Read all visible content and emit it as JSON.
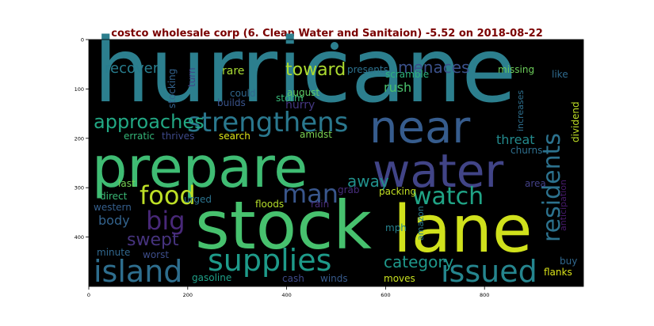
{
  "chart_data": {
    "type": "wordcloud",
    "title": "costco wholesale corp (6. Clean Water and Sanitaion) -5.52 on 2018-08-22",
    "title_color": "#7a0000",
    "background": "#000000",
    "colormap": "viridis",
    "xlim": [
      0,
      1000
    ],
    "ylim": [
      500,
      0
    ],
    "x_ticks": [
      0,
      200,
      400,
      600,
      800
    ],
    "y_ticks": [
      0,
      100,
      200,
      300,
      400
    ],
    "words": [
      {
        "text": "hurricane",
        "weight": 1.0,
        "color": "#2c7f8e"
      },
      {
        "text": "prepare",
        "weight": 0.9,
        "color": "#3fbc73"
      },
      {
        "text": "stock",
        "weight": 0.88,
        "color": "#47c16e"
      },
      {
        "text": "lane",
        "weight": 0.85,
        "color": "#d0e11c"
      },
      {
        "text": "water",
        "weight": 0.75,
        "color": "#414487"
      },
      {
        "text": "near",
        "weight": 0.72,
        "color": "#365c8d"
      },
      {
        "text": "supplies",
        "weight": 0.55,
        "color": "#1e9b8a"
      },
      {
        "text": "strengthens",
        "weight": 0.5,
        "color": "#2a788e"
      },
      {
        "text": "island",
        "weight": 0.5,
        "color": "#2e6e8e"
      },
      {
        "text": "issued",
        "weight": 0.48,
        "color": "#25858e"
      },
      {
        "text": "food",
        "weight": 0.42,
        "color": "#bddf26"
      },
      {
        "text": "big",
        "weight": 0.42,
        "color": "#482878"
      },
      {
        "text": "man",
        "weight": 0.4,
        "color": "#39568c"
      },
      {
        "text": "watch",
        "weight": 0.4,
        "color": "#20a486"
      },
      {
        "text": "residents",
        "weight": 0.38,
        "color": "#2c728e"
      },
      {
        "text": "approaches",
        "weight": 0.3,
        "color": "#22a884"
      },
      {
        "text": "swept",
        "weight": 0.28,
        "color": "#46337e"
      },
      {
        "text": "toward",
        "weight": 0.28,
        "color": "#addc30"
      },
      {
        "text": "category",
        "weight": 0.27,
        "color": "#1f988b"
      },
      {
        "text": "menaces",
        "weight": 0.27,
        "color": "#3b518b"
      },
      {
        "text": "recover",
        "weight": 0.25,
        "color": "#287d8e"
      },
      {
        "text": "away",
        "weight": 0.25,
        "color": "#21918c"
      },
      {
        "text": "threat",
        "weight": 0.22,
        "color": "#238a8d"
      },
      {
        "text": "body",
        "weight": 0.2,
        "color": "#33638d"
      },
      {
        "text": "rush",
        "weight": 0.2,
        "color": "#4ac16d"
      },
      {
        "text": "hurry",
        "weight": 0.18,
        "color": "#453882"
      },
      {
        "text": "rare",
        "weight": 0.16,
        "color": "#a8db34"
      },
      {
        "text": "missing",
        "weight": 0.15,
        "color": "#6ccd5a"
      },
      {
        "text": "like",
        "weight": 0.15,
        "color": "#2f6b8e"
      },
      {
        "text": "search",
        "weight": 0.15,
        "color": "#dde318"
      },
      {
        "text": "packing",
        "weight": 0.15,
        "color": "#c2df23"
      },
      {
        "text": "dividend",
        "weight": 0.14,
        "color": "#c0df25"
      },
      {
        "text": "anticipation",
        "weight": 0.13,
        "color": "#481b6d"
      },
      {
        "text": "presents",
        "weight": 0.14,
        "color": "#2d718e"
      },
      {
        "text": "august",
        "weight": 0.14,
        "color": "#5ec962"
      },
      {
        "text": "scramble",
        "weight": 0.14,
        "color": "#2db27d"
      },
      {
        "text": "stocking",
        "weight": 0.14,
        "color": "#33638d"
      },
      {
        "text": "turn",
        "weight": 0.14,
        "color": "#404688"
      },
      {
        "text": "could",
        "weight": 0.14,
        "color": "#31688e"
      },
      {
        "text": "storm",
        "weight": 0.14,
        "color": "#37b878"
      },
      {
        "text": "builds",
        "weight": 0.13,
        "color": "#3a548c"
      },
      {
        "text": "increases",
        "weight": 0.13,
        "color": "#2e6f8e"
      },
      {
        "text": "erratic",
        "weight": 0.14,
        "color": "#34b679"
      },
      {
        "text": "thrives",
        "weight": 0.14,
        "color": "#3e4989"
      },
      {
        "text": "amidst",
        "weight": 0.14,
        "color": "#7ad151"
      },
      {
        "text": "churns",
        "weight": 0.14,
        "color": "#2e6f8e"
      },
      {
        "text": "last",
        "weight": 0.15,
        "color": "#75d054"
      },
      {
        "text": "urged",
        "weight": 0.14,
        "color": "#2c738e"
      },
      {
        "text": "direct",
        "weight": 0.14,
        "color": "#3aba76"
      },
      {
        "text": "grab",
        "weight": 0.14,
        "color": "#472d7b"
      },
      {
        "text": "area",
        "weight": 0.14,
        "color": "#424086"
      },
      {
        "text": "western",
        "weight": 0.14,
        "color": "#355f8d"
      },
      {
        "text": "floods",
        "weight": 0.15,
        "color": "#b5de2b"
      },
      {
        "text": "rain",
        "weight": 0.14,
        "color": "#472c7a"
      },
      {
        "text": "mph",
        "weight": 0.14,
        "color": "#26828e"
      },
      {
        "text": "amazon",
        "weight": 0.13,
        "color": "#297b8e"
      },
      {
        "text": "minute",
        "weight": 0.14,
        "color": "#31688e"
      },
      {
        "text": "worst",
        "weight": 0.14,
        "color": "#3d4d8a"
      },
      {
        "text": "buy",
        "weight": 0.14,
        "color": "#31688e"
      },
      {
        "text": "flanks",
        "weight": 0.14,
        "color": "#dae319"
      },
      {
        "text": "gasoline",
        "weight": 0.14,
        "color": "#1fa088"
      },
      {
        "text": "cash",
        "weight": 0.14,
        "color": "#3e4a89"
      },
      {
        "text": "winds",
        "weight": 0.14,
        "color": "#375a8c"
      },
      {
        "text": "moves",
        "weight": 0.14,
        "color": "#c8e020"
      }
    ]
  }
}
